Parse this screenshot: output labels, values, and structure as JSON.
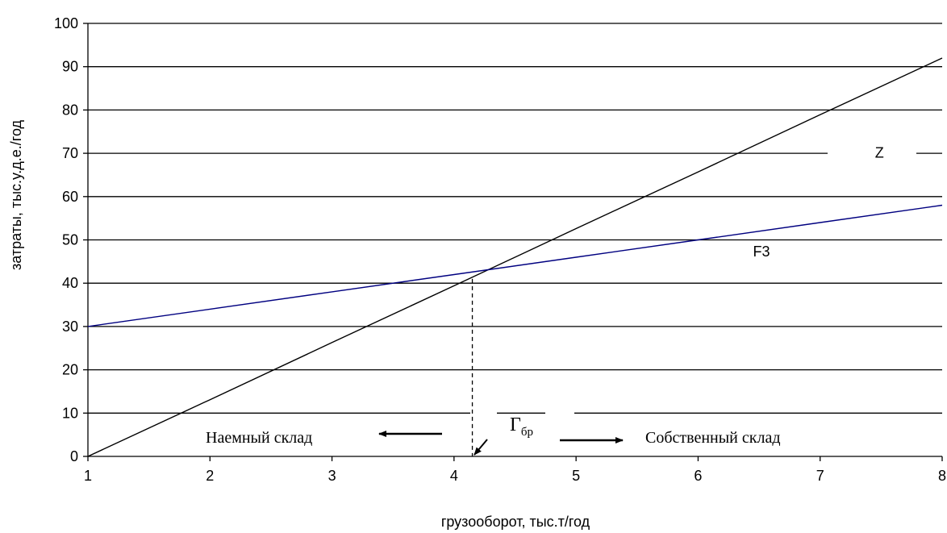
{
  "chart_data": {
    "type": "line",
    "title": "",
    "xlabel": "грузооборот, тыс.т/год",
    "ylabel": "затраты, тыс.у.д.е./год",
    "xlim": [
      1,
      8
    ],
    "ylim": [
      0,
      100
    ],
    "x_ticks": [
      1,
      2,
      3,
      4,
      5,
      6,
      7,
      8
    ],
    "y_ticks": [
      0,
      10,
      20,
      30,
      40,
      50,
      60,
      70,
      80,
      90,
      100
    ],
    "grid": "horizontal",
    "series": [
      {
        "name": "Z",
        "color": "#000000",
        "x": [
          1,
          2,
          3,
          4,
          5,
          6,
          7,
          8
        ],
        "y": [
          0,
          13.1,
          26.3,
          39.4,
          52.6,
          65.7,
          78.9,
          92
        ]
      },
      {
        "name": "F3",
        "color": "#000080",
        "x": [
          1,
          2,
          3,
          4,
          5,
          6,
          7,
          8
        ],
        "y": [
          30,
          34,
          38,
          42,
          46,
          50,
          54,
          58
        ]
      }
    ],
    "breakeven": {
      "x": 4.15,
      "y": 41,
      "label_main": "Г",
      "label_sub": "бр"
    },
    "annotations": {
      "left_text": "Наемный склад",
      "right_text": "Собственный склад"
    }
  }
}
